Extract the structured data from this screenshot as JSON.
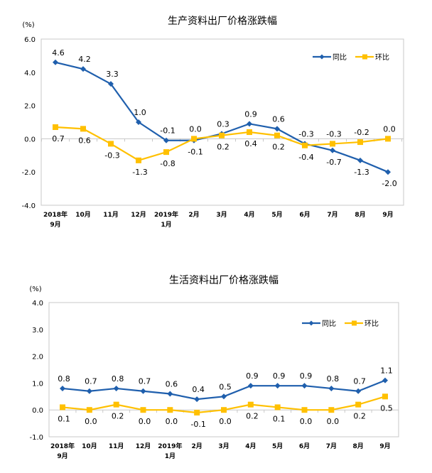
{
  "chart_data": [
    {
      "type": "line",
      "title": "生产资料出厂价格涨跌幅",
      "ylabel": "(%)",
      "ylim": [
        -4.0,
        6.0
      ],
      "yticks": [
        "6.0",
        "4.0",
        "2.0",
        "0.0",
        "-2.0",
        "-4.0"
      ],
      "categories": [
        [
          "2018年",
          "9月"
        ],
        [
          "10月"
        ],
        [
          "11月"
        ],
        [
          "12月"
        ],
        [
          "2019年",
          "1月"
        ],
        [
          "2月"
        ],
        [
          "3月"
        ],
        [
          "4月"
        ],
        [
          "5月"
        ],
        [
          "6月"
        ],
        [
          "7月"
        ],
        [
          "8月"
        ],
        [
          "9月"
        ]
      ],
      "legend_position": "top-right",
      "series": [
        {
          "name": "同比",
          "color": "#1F5FAD",
          "marker": "diamond",
          "values": [
            4.6,
            4.2,
            3.3,
            1.0,
            -0.1,
            -0.1,
            0.3,
            0.9,
            0.6,
            -0.3,
            -0.7,
            -1.3,
            -2.0
          ]
        },
        {
          "name": "环比",
          "color": "#FFC000",
          "marker": "square",
          "values": [
            0.7,
            0.6,
            -0.3,
            -1.3,
            -0.8,
            0.0,
            0.2,
            0.4,
            0.2,
            -0.4,
            -0.3,
            -0.2,
            0.0
          ]
        }
      ]
    },
    {
      "type": "line",
      "title": "生活资料出厂价格涨跌幅",
      "ylabel": "(%)",
      "ylim": [
        -1.0,
        4.0
      ],
      "yticks": [
        "4.0",
        "3.0",
        "2.0",
        "1.0",
        "0.0",
        "-1.0"
      ],
      "categories": [
        [
          "2018年",
          "9月"
        ],
        [
          "10月"
        ],
        [
          "11月"
        ],
        [
          "12月"
        ],
        [
          "2019年",
          "1月"
        ],
        [
          "2月"
        ],
        [
          "3月"
        ],
        [
          "4月"
        ],
        [
          "5月"
        ],
        [
          "6月"
        ],
        [
          "7月"
        ],
        [
          "8月"
        ],
        [
          "9月"
        ]
      ],
      "legend_position": "top-right",
      "series": [
        {
          "name": "同比",
          "color": "#1F5FAD",
          "marker": "diamond",
          "values": [
            0.8,
            0.7,
            0.8,
            0.7,
            0.6,
            0.4,
            0.5,
            0.9,
            0.9,
            0.9,
            0.8,
            0.7,
            1.1
          ]
        },
        {
          "name": "环比",
          "color": "#FFC000",
          "marker": "square",
          "values": [
            0.1,
            0.0,
            0.2,
            0.0,
            0.0,
            -0.1,
            0.0,
            0.2,
            0.1,
            0.0,
            0.0,
            0.2,
            0.5
          ]
        }
      ]
    }
  ]
}
